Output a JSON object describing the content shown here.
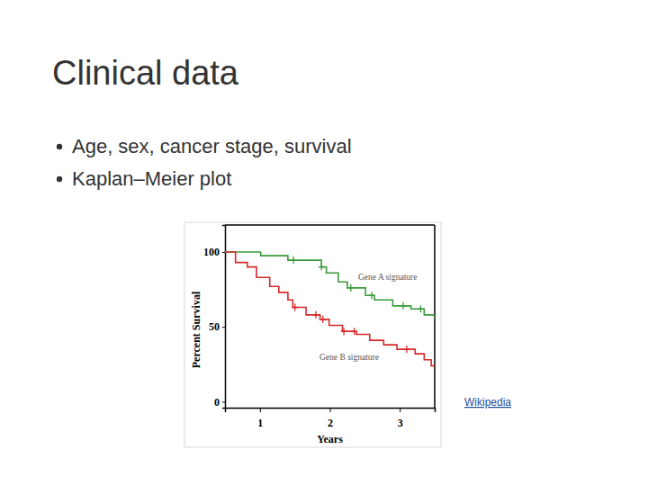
{
  "slide": {
    "title": "Clinical data",
    "bullets": [
      "Age, sex, cancer stage, survival",
      "Kaplan–Meier plot"
    ],
    "source": "Wikipedia"
  },
  "chart_data": {
    "type": "line",
    "x_label": "Years",
    "y_label": "Percent Survival",
    "xlim": [
      0.5,
      3.5
    ],
    "xticks": [
      1,
      2,
      3
    ],
    "ylim": [
      -4,
      118
    ],
    "yticks": [
      0,
      50,
      100
    ],
    "line_style": "step",
    "series": [
      {
        "name": "Gene A signature",
        "color": "#3a9a3a",
        "x": [
          0.5,
          1.01,
          1.4,
          1.88,
          1.95,
          2.12,
          2.25,
          2.51,
          2.64,
          2.9,
          3.16,
          3.35,
          3.5
        ],
        "values": [
          100,
          97.5,
          94.5,
          90,
          86,
          80,
          76,
          71,
          68,
          64,
          62,
          58,
          55
        ],
        "censored": {
          "x": [
            1.48,
            1.88,
            2.3,
            2.6,
            3.05,
            3.3
          ],
          "values": [
            94.5,
            90,
            76,
            71,
            64,
            62
          ]
        }
      },
      {
        "name": "Gene B signature",
        "color": "#d42a2a",
        "x": [
          0.5,
          0.65,
          0.82,
          0.95,
          1.14,
          1.27,
          1.4,
          1.47,
          1.66,
          1.86,
          1.99,
          2.18,
          2.38,
          2.57,
          2.77,
          2.96,
          3.22,
          3.35,
          3.45,
          3.5
        ],
        "values": [
          100,
          93,
          90,
          83,
          77,
          73,
          68,
          63,
          58,
          55,
          51,
          47,
          45,
          41,
          38,
          35,
          32,
          28,
          24,
          24
        ],
        "censored": {
          "x": [
            1.5,
            1.8,
            1.9,
            2.2,
            2.35,
            3.1
          ],
          "values": [
            63,
            58,
            55,
            47,
            47,
            35
          ]
        }
      }
    ]
  }
}
